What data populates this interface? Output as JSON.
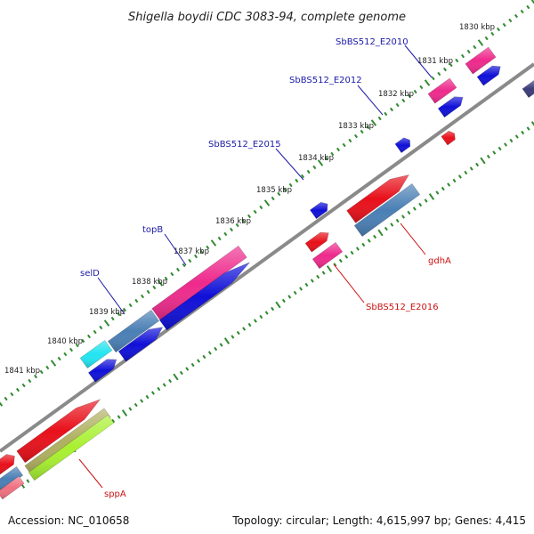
{
  "title": "Shigella boydii CDC 3083-94, complete genome",
  "footer": {
    "accession": "Accession: NC_010658",
    "summary": "Topology: circular; Length: 4,615,997 bp; Genes: 4,415"
  },
  "ruler_ticks": [
    "1830 kbp",
    "1831 kbp",
    "1832 kbp",
    "1833 kbp",
    "1834 kbp",
    "1835 kbp",
    "1836 kbp",
    "1837 kbp",
    "1838 kbp",
    "1839 kbp",
    "1840 kbp",
    "1841 kbp"
  ],
  "forward_labels": [
    "SbBS512_E2010",
    "SbBS512_E2012",
    "SbBS512_E2015",
    "topB",
    "selD"
  ],
  "reverse_labels": [
    "gdhA",
    "SbBS512_E2016",
    "sppA"
  ],
  "colors": {
    "label_forward": "#1a1aa6",
    "label_reverse": "#cc1111",
    "backbone": "#8a8a8a",
    "tick": "#2f8a2f",
    "feature_blue": "#1010d8",
    "feature_red": "#e8101a",
    "feature_pink": "#ee2a8c",
    "feature_steel": "#4a7fb5",
    "feature_cyan": "#22e4f0",
    "feature_olive": "#b0b060",
    "feature_lime": "#a8f030",
    "feature_navy": "#3c3c7a",
    "feature_salmon": "#f07080"
  }
}
